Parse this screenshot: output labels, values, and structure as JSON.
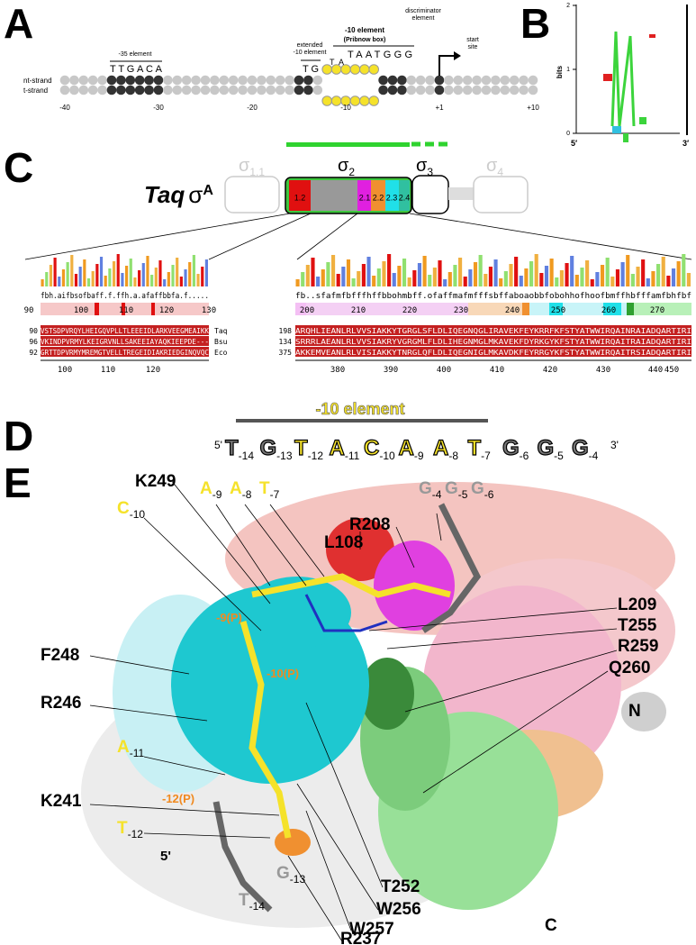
{
  "panel_letters": [
    "A",
    "B",
    "C",
    "D",
    "E"
  ],
  "panel_a": {
    "strands": [
      "nt-strand",
      "t-strand"
    ],
    "minus35_label": "-35 element",
    "minus35_seq": "TTGACA",
    "ext_label": [
      "extended",
      "-10 element"
    ],
    "ext_seq": "TG",
    "minus10_label": [
      "-10 element",
      "(Pribnow box)"
    ],
    "minus10_seq_small": "TA",
    "minus10_seq": "TAATGGG",
    "disc_label": [
      "discriminator",
      "element"
    ],
    "start_label": [
      "start",
      "site"
    ],
    "positions": [
      "-40",
      "-30",
      "-20",
      "-10",
      "+1",
      "+10"
    ]
  },
  "panel_b": {
    "ylabel": "bits",
    "yticks": [
      0,
      1,
      2
    ],
    "ends": [
      "5′",
      "3′"
    ]
  },
  "panel_c": {
    "taq": "Taq",
    "sigma": "σ",
    "sup": "A",
    "domains": [
      {
        "base": "σ",
        "sub": "1.1"
      },
      {
        "base": "σ",
        "sub": "2"
      },
      {
        "base": "σ",
        "sub": "3"
      },
      {
        "base": "σ",
        "sub": "4"
      }
    ],
    "regions": [
      "1.2",
      "2.1",
      "2.2",
      "2.3",
      "2.4"
    ],
    "left": {
      "consensus": "fbh.aifbsofbaff.f.ffh.a.afaffbbfa.f.....",
      "top_numbers": [
        90,
        100,
        110,
        120,
        130
      ],
      "rows": [
        {
          "start": "90",
          "seq": "VSTSDPVRQYLHEIGQVPLLTLEEEIDLARKVEEGMEAIKK",
          "species": "Taq"
        },
        {
          "start": "96",
          "seq": "VKINDPVRMYLKEIGRVNLLSAKEEIAYAQKIEEPDE---",
          "species": "Bsu"
        },
        {
          "start": "92",
          "seq": "GRTTDPVRMYMREMGTVELLTREGEIDIAKRIEDGINQVQC",
          "species": "Eco"
        }
      ],
      "bottom_numbers": [
        100,
        110,
        120
      ]
    },
    "right": {
      "consensus": "fb..sfafmfbfffhffbbohmbff.ofaffmafmfffsbffaboaobbfobohhofhoofbmffhbfffamfbhfbf",
      "top_numbers": [
        200,
        210,
        220,
        230,
        240,
        250,
        260,
        270
      ],
      "rows": [
        {
          "start": "198",
          "seq": "ARQHLIEANLRLVVSIAKKYTGRGLSFLDLIQEGNQGLIRAVEKFEYKRRFKFSTYATWWIRQAINRAIADQARTIRI"
        },
        {
          "start": "134",
          "seq": "SRRRLAEANLRLVVSIAKRYVGRGMLFLDLIHEGNMGLMKAVEKFDYRKGYKFSTYATWWIRQAITRAIADQARTIRI"
        },
        {
          "start": "375",
          "seq": "AKKEMVEANLRLVISIAKKYTNRGLQFLDLIQEGNIGLMKAVDKFEYRRGYKFSTYATWWIRQAITRSIADQARTIRI"
        }
      ],
      "bottom_numbers": [
        380,
        390,
        400,
        410,
        420,
        430,
        440,
        450
      ]
    }
  },
  "panel_d": {
    "title": "-10 element",
    "prime5": "5'",
    "prime3": "3'",
    "bases": [
      {
        "base": "T",
        "sub": "-14"
      },
      {
        "base": "G",
        "sub": "-13"
      },
      {
        "base": "T",
        "sub": "-12"
      },
      {
        "base": "A",
        "sub": "-11"
      },
      {
        "base": "C",
        "sub": "-10"
      },
      {
        "base": "A",
        "sub": "-9"
      },
      {
        "base": "A",
        "sub": "-8"
      },
      {
        "base": "T",
        "sub": "-7"
      },
      {
        "base": "G",
        "sub": "-6"
      },
      {
        "base": "G",
        "sub": "-5"
      },
      {
        "base": "G",
        "sub": "-4"
      }
    ]
  },
  "panel_e": {
    "residues": [
      "K249",
      "R208",
      "L108",
      "L209",
      "T255",
      "R259",
      "Q260",
      "F248",
      "R246",
      "K241",
      "T252",
      "W256",
      "W257",
      "R237"
    ],
    "termini": [
      "N",
      "C",
      "5'"
    ],
    "phosphates": [
      "-9(P)",
      "-10(P)",
      "-12(P)"
    ],
    "nucleotides": [
      {
        "base": "A",
        "sub": "-9"
      },
      {
        "base": "A",
        "sub": "-8"
      },
      {
        "base": "T",
        "sub": "-7"
      },
      {
        "base": "C",
        "sub": "-10"
      },
      {
        "base": "G",
        "sub": "-4"
      },
      {
        "base": "G",
        "sub": "-5"
      },
      {
        "base": "G",
        "sub": "-6"
      },
      {
        "base": "A",
        "sub": "-11"
      },
      {
        "base": "T",
        "sub": "-12"
      },
      {
        "base": "G",
        "sub": "-13"
      },
      {
        "base": "T",
        "sub": "-14"
      }
    ]
  }
}
